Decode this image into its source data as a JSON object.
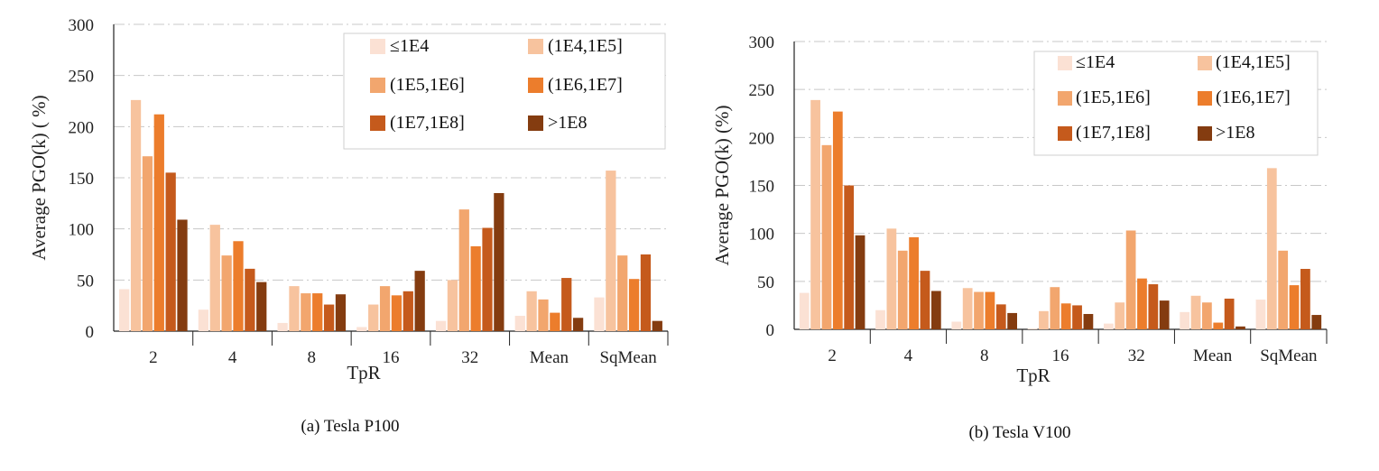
{
  "chart_data": [
    {
      "type": "bar",
      "caption": "(a) Tesla P100",
      "xlabel": "TpR",
      "ylabel": "Average PGO(k) ( %)",
      "ylim": [
        0,
        300
      ],
      "yticks": [
        0,
        50,
        100,
        150,
        200,
        250,
        300
      ],
      "grid": true,
      "legend_position": "top-right",
      "categories": [
        "2",
        "4",
        "8",
        "16",
        "32",
        "Mean",
        "SqMean"
      ],
      "series": [
        {
          "name": "≤1E4",
          "color": "#fbe1d4",
          "values": [
            41,
            21,
            8,
            4,
            10,
            15,
            33
          ]
        },
        {
          "name": "(1E4,1E5]",
          "color": "#f7c39e",
          "values": [
            226,
            104,
            44,
            26,
            50,
            39,
            157
          ]
        },
        {
          "name": "(1E5,1E6]",
          "color": "#f2a66e",
          "values": [
            171,
            74,
            37,
            44,
            119,
            31,
            74
          ]
        },
        {
          "name": "(1E6,1E7]",
          "color": "#ec7d2c",
          "values": [
            212,
            88,
            37,
            35,
            83,
            18,
            51
          ]
        },
        {
          "name": "(1E7,1E8]",
          "color": "#c55a1c",
          "values": [
            155,
            61,
            26,
            39,
            101,
            52,
            75
          ]
        },
        {
          "name": ">1E8",
          "color": "#843c10",
          "values": [
            109,
            48,
            36,
            59,
            135,
            13,
            10
          ]
        }
      ]
    },
    {
      "type": "bar",
      "caption": "(b) Tesla V100",
      "xlabel": "TpR",
      "ylabel": "Average PGO(k) (%)",
      "ylim": [
        0,
        300
      ],
      "yticks": [
        0,
        50,
        100,
        150,
        200,
        250,
        300
      ],
      "grid": true,
      "legend_position": "top-right",
      "categories": [
        "2",
        "4",
        "8",
        "16",
        "32",
        "Mean",
        "SqMean"
      ],
      "series": [
        {
          "name": "≤1E4",
          "color": "#fbe1d4",
          "values": [
            38,
            20,
            8,
            1,
            6,
            18,
            31
          ]
        },
        {
          "name": "(1E4,1E5]",
          "color": "#f7c39e",
          "values": [
            239,
            105,
            43,
            19,
            28,
            35,
            168
          ]
        },
        {
          "name": "(1E5,1E6]",
          "color": "#f2a66e",
          "values": [
            192,
            82,
            39,
            44,
            103,
            28,
            82
          ]
        },
        {
          "name": "(1E6,1E7]",
          "color": "#ec7d2c",
          "values": [
            227,
            96,
            39,
            27,
            53,
            7,
            46
          ]
        },
        {
          "name": "(1E7,1E8]",
          "color": "#c55a1c",
          "values": [
            150,
            61,
            26,
            25,
            47,
            32,
            63
          ]
        },
        {
          "name": ">1E8",
          "color": "#843c10",
          "values": [
            98,
            40,
            17,
            16,
            30,
            3,
            15
          ]
        }
      ]
    }
  ]
}
